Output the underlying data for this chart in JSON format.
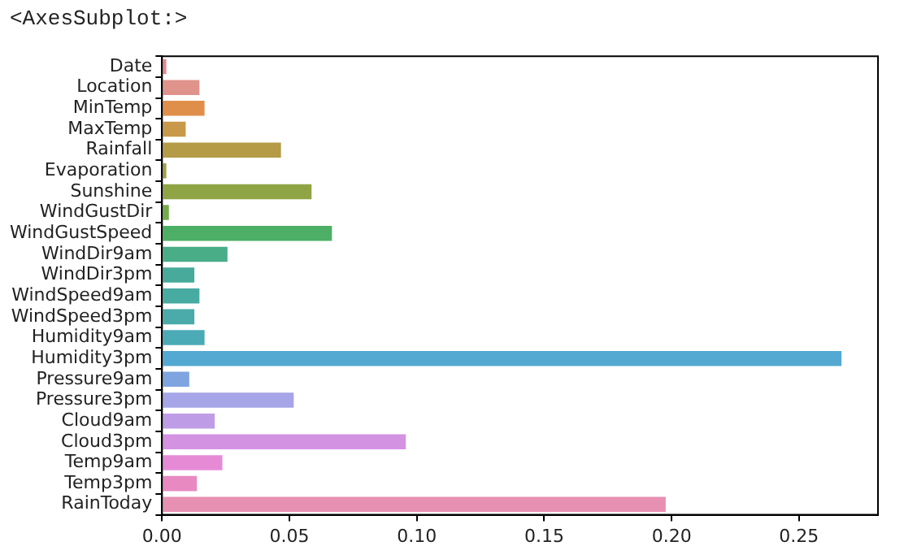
{
  "chart_data": {
    "type": "bar",
    "orientation": "horizontal",
    "title": "<AxesSubplot:>",
    "categories": [
      "Date",
      "Location",
      "MinTemp",
      "MaxTemp",
      "Rainfall",
      "Evaporation",
      "Sunshine",
      "WindGustDir",
      "WindGustSpeed",
      "WindDir9am",
      "WindDir3pm",
      "WindSpeed9am",
      "WindSpeed3pm",
      "Humidity9am",
      "Humidity3pm",
      "Pressure9am",
      "Pressure3pm",
      "Cloud9am",
      "Cloud3pm",
      "Temp9am",
      "Temp3pm",
      "RainToday"
    ],
    "values": [
      0.002,
      0.015,
      0.017,
      0.0096,
      0.047,
      0.002,
      0.059,
      0.003,
      0.067,
      0.026,
      0.013,
      0.015,
      0.013,
      0.017,
      0.267,
      0.011,
      0.052,
      0.021,
      0.096,
      0.024,
      0.014,
      0.198
    ],
    "colors": [
      "#e5888f",
      "#e0938b",
      "#e08f4a",
      "#c8994a",
      "#b59a48",
      "#a3a046",
      "#8fa545",
      "#73ab4a",
      "#4caf65",
      "#49ad88",
      "#48aa9b",
      "#48aba2",
      "#4aabaa",
      "#4aaab5",
      "#53a9d2",
      "#7ea5e0",
      "#a5a5e8",
      "#bf9de6",
      "#d492e3",
      "#e68ad6",
      "#e889c2",
      "#e890b1"
    ],
    "xlim": [
      0,
      0.281
    ],
    "xticks": [
      {
        "value": 0,
        "label": "0.00"
      },
      {
        "value": 0.05,
        "label": "0.05"
      },
      {
        "value": 0.1,
        "label": "0.10"
      },
      {
        "value": 0.15,
        "label": "0.15"
      },
      {
        "value": 0.2,
        "label": "0.20"
      },
      {
        "value": 0.25,
        "label": "0.25"
      }
    ],
    "grid": false,
    "legend": false
  }
}
